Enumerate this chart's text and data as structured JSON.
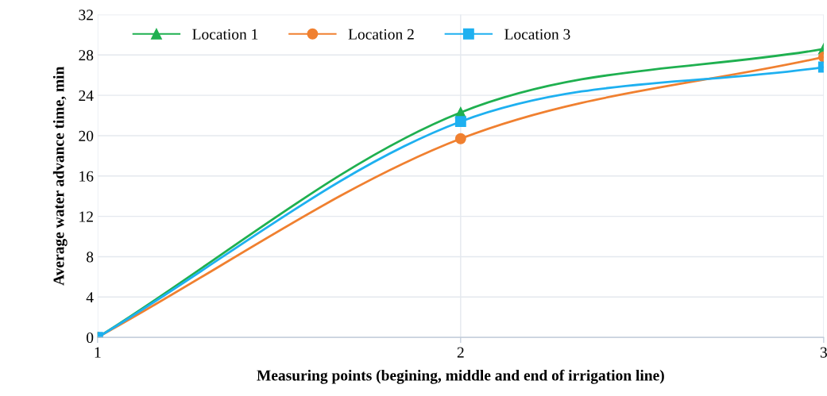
{
  "chart_data": {
    "type": "line",
    "xlabel": "Measuring points (begining, middle and end of irrigation line)",
    "ylabel": "Average water advance time, min",
    "x": [
      1,
      2,
      3
    ],
    "xlim": [
      1,
      3
    ],
    "xticks": [
      1,
      2,
      3
    ],
    "ylim": [
      0,
      32
    ],
    "yticks": [
      0,
      4,
      8,
      12,
      16,
      20,
      24,
      28,
      32
    ],
    "grid": true,
    "legend": "top left",
    "line_style": "solid",
    "series": [
      {
        "name": "Location 1",
        "color": "#1fb050",
        "marker": "triangle",
        "values": [
          0,
          22.3,
          28.6
        ]
      },
      {
        "name": "Location 2",
        "color": "#f08030",
        "marker": "circle",
        "values": [
          0,
          19.7,
          27.8
        ]
      },
      {
        "name": "Location 3",
        "color": "#1eb0f0",
        "marker": "square",
        "values": [
          0,
          21.4,
          26.8
        ]
      }
    ]
  }
}
